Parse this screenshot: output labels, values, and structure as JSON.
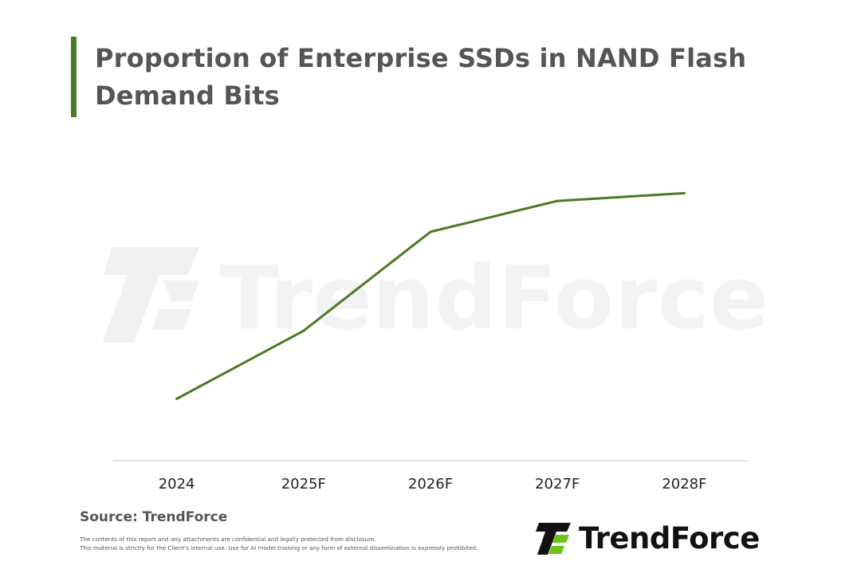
{
  "colors": {
    "accent": "#4a7a25",
    "line": "#4a7a25",
    "title": "#555555",
    "axis": "#cccccc",
    "logo_green": "#6cc417",
    "logo_dark": "#111111"
  },
  "header": {
    "title": "Proportion of Enterprise SSDs in NAND Flash Demand Bits"
  },
  "watermark": {
    "text": "TrendForce"
  },
  "chart_data": {
    "type": "line",
    "title": "Proportion of Enterprise SSDs in NAND Flash Demand Bits",
    "xlabel": "",
    "ylabel": "",
    "categories": [
      "2024",
      "2025F",
      "2026F",
      "2027F",
      "2028F"
    ],
    "series": [
      {
        "values": [
          0.2,
          0.42,
          0.74,
          0.84,
          0.865
        ]
      }
    ],
    "ylim": [
      0,
      1
    ],
    "grid": false,
    "legend": "none"
  },
  "footer": {
    "source": "Source: TrendForce",
    "disclaimer_line1": "The contents of this report and any attachments are confidential and legally protected from disclosure.",
    "disclaimer_line2": "This material is strictly for the Client's internal use. Use for AI model training or any form of external dissemination is expressly prohibited.",
    "logo_text": "TrendForce"
  }
}
